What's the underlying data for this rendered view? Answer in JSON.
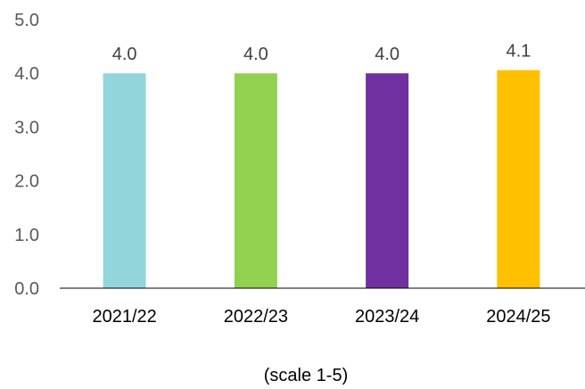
{
  "chart_data": {
    "type": "bar",
    "categories": [
      "2021/22",
      "2022/23",
      "2023/24",
      "2024/25"
    ],
    "values": [
      4.0,
      4.0,
      4.0,
      4.06
    ],
    "data_labels": [
      "4.0",
      "4.0",
      "4.0",
      "4.1"
    ],
    "colors": [
      "#92D6DC",
      "#92D050",
      "#7030A0",
      "#FFC000"
    ],
    "yticks": [
      "0.0",
      "1.0",
      "2.0",
      "3.0",
      "4.0",
      "5.0"
    ],
    "ylim": [
      0,
      5
    ],
    "xlabel": "(scale 1-5)",
    "grid": false,
    "legend": "none"
  }
}
